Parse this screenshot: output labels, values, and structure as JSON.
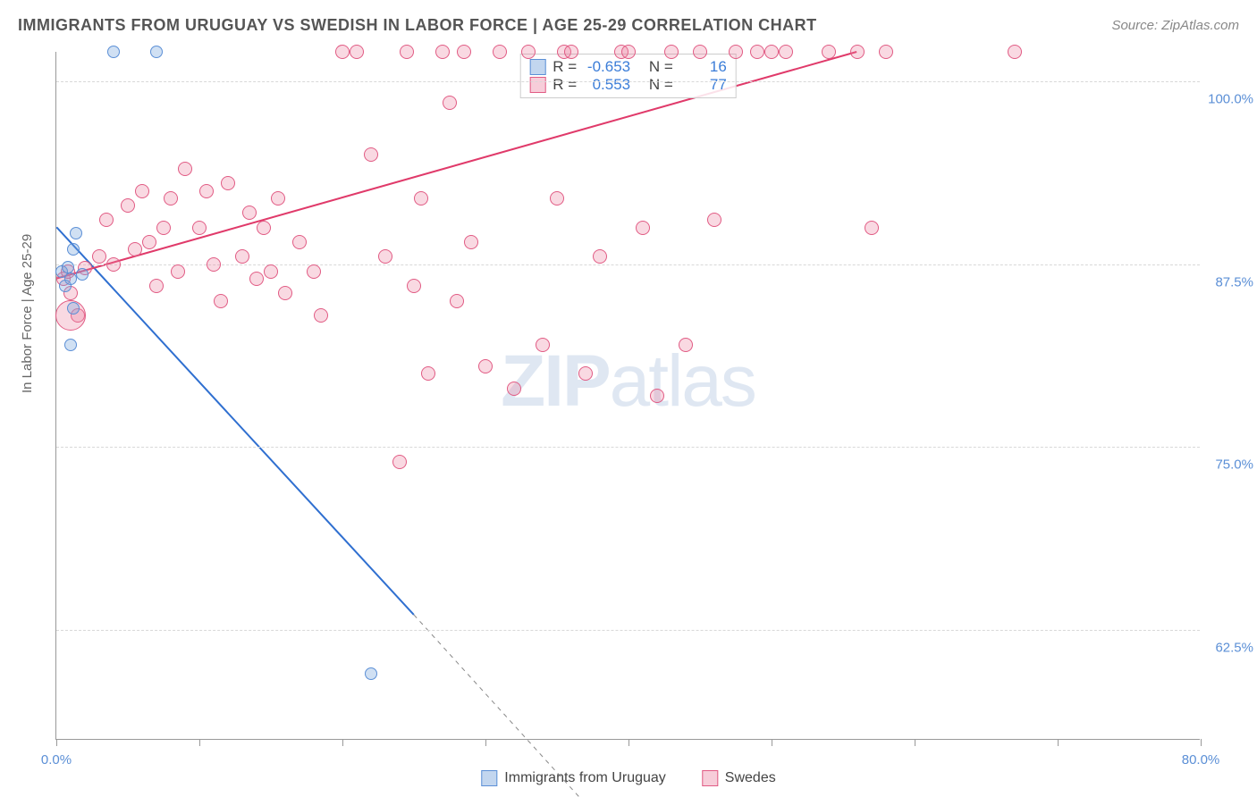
{
  "title": "IMMIGRANTS FROM URUGUAY VS SWEDISH IN LABOR FORCE | AGE 25-29 CORRELATION CHART",
  "source": "Source: ZipAtlas.com",
  "y_axis_label": "In Labor Force | Age 25-29",
  "watermark_bold": "ZIP",
  "watermark_rest": "atlas",
  "chart": {
    "type": "scatter",
    "xlim": [
      0,
      80
    ],
    "ylim": [
      55,
      102
    ],
    "y_ticks": [
      62.5,
      75.0,
      87.5,
      100.0
    ],
    "y_tick_labels": [
      "62.5%",
      "75.0%",
      "87.5%",
      "100.0%"
    ],
    "x_ticks": [
      0,
      10,
      20,
      30,
      40,
      50,
      60,
      70,
      80
    ],
    "x_tick_labels": {
      "0": "0.0%",
      "80": "80.0%"
    },
    "background_color": "#ffffff",
    "grid_color": "#d8d8d8",
    "series": {
      "uruguay": {
        "label": "Immigrants from Uruguay",
        "fill": "rgba(120,165,220,0.35)",
        "stroke": "#5b8fd6",
        "marker_size": 14,
        "points": [
          [
            0.4,
            87.0
          ],
          [
            0.6,
            86.0
          ],
          [
            0.8,
            87.3
          ],
          [
            1.0,
            86.5
          ],
          [
            1.2,
            88.5
          ],
          [
            1.4,
            89.6
          ],
          [
            1.8,
            86.8
          ],
          [
            1.0,
            82.0
          ],
          [
            1.2,
            84.5
          ],
          [
            4.0,
            102.0
          ],
          [
            7.0,
            102.0
          ],
          [
            22.0,
            59.5
          ]
        ],
        "regression": {
          "x1": 0,
          "y1": 90.0,
          "x2": 25.0,
          "y2": 63.5,
          "extend_x2": 38.0,
          "extend_y2": 49.5,
          "color": "#2f6fd0",
          "width": 2
        }
      },
      "swedes": {
        "label": "Swedes",
        "fill": "rgba(235,130,160,0.30)",
        "stroke": "#e15b84",
        "marker_size": 16,
        "points": [
          [
            0.5,
            86.5
          ],
          [
            0.8,
            87.0
          ],
          [
            1.0,
            85.5
          ],
          [
            1.5,
            84.0
          ],
          [
            2.0,
            87.2
          ],
          [
            3.0,
            88.0
          ],
          [
            3.5,
            90.5
          ],
          [
            4.0,
            87.5
          ],
          [
            5.0,
            91.5
          ],
          [
            5.5,
            88.5
          ],
          [
            6.0,
            92.5
          ],
          [
            6.5,
            89.0
          ],
          [
            7.0,
            86.0
          ],
          [
            7.5,
            90.0
          ],
          [
            8.0,
            92.0
          ],
          [
            8.5,
            87.0
          ],
          [
            9.0,
            94.0
          ],
          [
            10.0,
            90.0
          ],
          [
            10.5,
            92.5
          ],
          [
            11.0,
            87.5
          ],
          [
            11.5,
            85.0
          ],
          [
            12.0,
            93.0
          ],
          [
            13.0,
            88.0
          ],
          [
            13.5,
            91.0
          ],
          [
            14.0,
            86.5
          ],
          [
            14.5,
            90.0
          ],
          [
            15.0,
            87.0
          ],
          [
            15.5,
            92.0
          ],
          [
            16.0,
            85.5
          ],
          [
            17.0,
            89.0
          ],
          [
            18.0,
            87.0
          ],
          [
            18.5,
            84.0
          ],
          [
            20.0,
            102.0
          ],
          [
            21.0,
            102.0
          ],
          [
            22.0,
            95.0
          ],
          [
            23.0,
            88.0
          ],
          [
            24.0,
            74.0
          ],
          [
            24.5,
            102.0
          ],
          [
            25.0,
            86.0
          ],
          [
            25.5,
            92.0
          ],
          [
            26.0,
            80.0
          ],
          [
            27.0,
            102.0
          ],
          [
            27.5,
            98.5
          ],
          [
            28.0,
            85.0
          ],
          [
            28.5,
            102.0
          ],
          [
            29.0,
            89.0
          ],
          [
            30.0,
            80.5
          ],
          [
            31.0,
            102.0
          ],
          [
            32.0,
            79.0
          ],
          [
            33.0,
            102.0
          ],
          [
            34.0,
            82.0
          ],
          [
            35.0,
            92.0
          ],
          [
            35.5,
            102.0
          ],
          [
            36.0,
            102.0
          ],
          [
            37.0,
            80.0
          ],
          [
            38.0,
            88.0
          ],
          [
            39.5,
            102.0
          ],
          [
            40.0,
            102.0
          ],
          [
            41.0,
            90.0
          ],
          [
            42.0,
            78.5
          ],
          [
            43.0,
            102.0
          ],
          [
            44.0,
            82.0
          ],
          [
            45.0,
            102.0
          ],
          [
            46.0,
            90.5
          ],
          [
            47.5,
            102.0
          ],
          [
            49.0,
            102.0
          ],
          [
            50.0,
            102.0
          ],
          [
            51.0,
            102.0
          ],
          [
            54.0,
            102.0
          ],
          [
            56.0,
            102.0
          ],
          [
            57.0,
            90.0
          ],
          [
            58.0,
            102.0
          ],
          [
            67.0,
            102.0
          ]
        ],
        "large_point": {
          "x": 1.0,
          "y": 84.0,
          "size": 34
        },
        "regression": {
          "x1": 0,
          "y1": 86.5,
          "x2": 56.0,
          "y2": 102.0,
          "color": "#e03a6a",
          "width": 2
        }
      }
    }
  },
  "stats": {
    "uruguay": {
      "R_label": "R =",
      "R": "-0.653",
      "N_label": "N =",
      "N": "16"
    },
    "swedes": {
      "R_label": "R =",
      "R": "0.553",
      "N_label": "N =",
      "N": "77"
    }
  },
  "legend_swatches": {
    "uruguay": {
      "fill": "rgba(120,165,220,0.45)",
      "border": "#5b8fd6"
    },
    "swedes": {
      "fill": "rgba(235,130,160,0.40)",
      "border": "#e15b84"
    }
  }
}
